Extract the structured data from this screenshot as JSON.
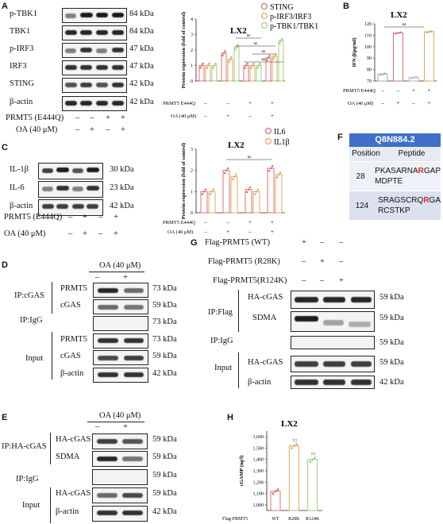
{
  "panels": {
    "A": {
      "letter": "A",
      "rows": [
        {
          "label": "p-TBK1",
          "kda": "84 kDa"
        },
        {
          "label": "TBK1",
          "kda": "84 kDa"
        },
        {
          "label": "p-IRF3",
          "kda": "47 kDa"
        },
        {
          "label": "IRF3",
          "kda": "47 kDa"
        },
        {
          "label": "STING",
          "kda": "42 kDa"
        },
        {
          "label": "β-actin",
          "kda": "42 kDa"
        }
      ],
      "cond1_label": "PRMT5 (E444Q)",
      "cond1_signs": [
        "–",
        "–",
        "+",
        "+"
      ],
      "cond2_label": "OA (40 μM)",
      "cond2_signs": [
        "–",
        "+",
        "–",
        "+"
      ],
      "chart_title": "LX2",
      "legend": [
        "STING",
        "p-IRF3/IRF3",
        "p-TBK1/TBK1"
      ],
      "ylabel": "Protein expression (fold of control)",
      "yticks": [
        "0",
        "1",
        "2",
        "3",
        "4"
      ],
      "x_cond1": "PRMT5  E444Q",
      "x_cond2": "OA (40 μM)",
      "x_signs1": [
        "–",
        "–",
        "+",
        "+"
      ],
      "x_signs2": [
        "–",
        "+",
        "–",
        "+"
      ],
      "ns": [
        "ns",
        "ns",
        "ns",
        "ns"
      ]
    },
    "B": {
      "letter": "B",
      "title": "LX2",
      "ylabel": "IFN-β(pg/ml)",
      "yticks": [
        "70",
        "80",
        "90",
        "100",
        "110",
        "120"
      ],
      "x_cond1": "PRMT5  E444Q",
      "x_cond2": "OA (40 μM)",
      "x_signs1": [
        "–",
        "–",
        "+",
        "+"
      ],
      "x_signs2": [
        "–",
        "+",
        "–",
        "+"
      ],
      "ns": "ns"
    },
    "C": {
      "letter": "C",
      "rows": [
        {
          "label": "IL-1β",
          "kda": "30 kDa"
        },
        {
          "label": "IL-6",
          "kda": "23 kDa"
        },
        {
          "label": "β-actin",
          "kda": "42 kDa"
        }
      ],
      "cond1_label": "PRMT5 (E444Q)",
      "cond1_signs": [
        "–",
        "+",
        "–",
        "+"
      ],
      "cond2_label": "OA (40 μM)",
      "cond2_signs": [
        "–",
        "+",
        "–",
        "+"
      ],
      "chart_title": "LX2",
      "legend": [
        "IL6",
        "IL1β"
      ],
      "ylabel": "Protein expression (fold of control)",
      "yticks": [
        "0",
        "1",
        "2",
        "3"
      ],
      "x_cond1": "PRMT5  E444Q",
      "x_cond2": "OA (40 μM)",
      "x_signs1": [
        "–",
        "–",
        "+",
        "+"
      ],
      "x_signs2": [
        "–",
        "+",
        "–",
        "+"
      ],
      "ns": "ns"
    },
    "D": {
      "letter": "D",
      "cond_label": "OA (40 μM)",
      "signs": [
        "–",
        "+"
      ],
      "group_ip": "IP:cGAS",
      "group_igg": "IP:IgG",
      "group_input": "Input",
      "rows": [
        {
          "label": "PRMT5",
          "kda": "73 kDa"
        },
        {
          "label": "cGAS",
          "kda": "59 kDa"
        },
        {
          "label": "",
          "kda": "73 kDa"
        },
        {
          "label": "PRMT5",
          "kda": "73 kDa"
        },
        {
          "label": "cGAS",
          "kda": "59 kDa"
        },
        {
          "label": "β-actin",
          "kda": "42 kDa"
        }
      ]
    },
    "E": {
      "letter": "E",
      "cond_label": "OA (40 μM)",
      "signs": [
        "–",
        "+"
      ],
      "group_ip": "IP:HA-cGAS",
      "group_igg": "IP:IgG",
      "group_input": "Input",
      "rows": [
        {
          "label": "HA-cGAS",
          "kda": "59 kDa"
        },
        {
          "label": "SDMA",
          "kda": "59 kDa"
        },
        {
          "label": "",
          "kda": "59 kDa"
        },
        {
          "label": "HA-cGAS",
          "kda": "59 kDa"
        },
        {
          "label": "β-actin",
          "kda": "42 kDa"
        }
      ]
    },
    "F": {
      "letter": "F",
      "header": "Q8N884.2",
      "col1": "Position",
      "col2": "Peptide",
      "rows": [
        {
          "pos": "28",
          "pre": "PKASARNA",
          "r": "R",
          "post": "GAP",
          "line2": "MDPTE"
        },
        {
          "pos": "124",
          "pre": "SRAGSCRQ",
          "r": "R",
          "post": "GA",
          "line2": "RCSTKP"
        }
      ],
      "accent": "#3f6fc8",
      "red": "#e0302a"
    },
    "G": {
      "letter": "G",
      "cond_rows": [
        {
          "label": "Flag-PRMT5  (WT)",
          "signs": [
            "+",
            "–",
            "–"
          ]
        },
        {
          "label": "Flag-PRMT5  (R28K)",
          "signs": [
            "–",
            "+",
            "–"
          ]
        },
        {
          "label": "Flag-PRMT5(R124K)",
          "signs": [
            "–",
            "–",
            "+"
          ]
        }
      ],
      "group_ip": "IP:Flag",
      "group_igg": "IP:IgG",
      "group_input": "Input",
      "rows": [
        {
          "label": "HA-cGAS",
          "kda": "59 kDa"
        },
        {
          "label": "SDMA",
          "kda": "59 kDa"
        },
        {
          "label": "",
          "kda": "59 kDa"
        },
        {
          "label": "HA-cGAS",
          "kda": "59 kDa"
        },
        {
          "label": "β-actin",
          "kda": "42 kDa"
        }
      ]
    },
    "H": {
      "letter": "H",
      "title": "LX2",
      "ylabel": "cGAMP (ng/l)",
      "yticks": [
        "1,000",
        "1,100",
        "1,200",
        "1,300",
        "1,400",
        "1,500",
        "1,600"
      ],
      "xlabel": "Flag-PRMT5",
      "categories": [
        "WT",
        "R28K",
        "R124K"
      ],
      "sig": [
        "##",
        "##"
      ]
    }
  },
  "chart_data": [
    {
      "type": "bar",
      "panel": "A",
      "title": "LX2",
      "ylabel": "Protein expression (fold of control)",
      "ylim": [
        0,
        4
      ],
      "categories": [
        "1",
        "2",
        "3",
        "4"
      ],
      "series": [
        {
          "name": "STING",
          "values": [
            1.0,
            1.8,
            1.0,
            1.5
          ],
          "color": "#e07070"
        },
        {
          "name": "p-IRF3/IRF3",
          "values": [
            1.0,
            1.4,
            1.0,
            1.6
          ],
          "color": "#e0a860"
        },
        {
          "name": "p-TBK1/TBK1",
          "values": [
            1.0,
            2.2,
            1.0,
            2.6
          ],
          "color": "#9ccf7a"
        }
      ]
    },
    {
      "type": "bar",
      "panel": "B",
      "title": "LX2",
      "ylabel": "IFN-β(pg/ml)",
      "ylim": [
        70,
        120
      ],
      "categories": [
        "1",
        "2",
        "3",
        "4"
      ],
      "series": [
        {
          "values": [
            76,
            112,
            73,
            113
          ],
          "colors": [
            "#9aa8d8",
            "#e07070",
            "#c8a8d8",
            "#e0a860"
          ]
        }
      ]
    },
    {
      "type": "bar",
      "panel": "C",
      "title": "LX2",
      "ylabel": "Protein expression (fold of control)",
      "ylim": [
        0,
        3
      ],
      "categories": [
        "1",
        "2",
        "3",
        "4"
      ],
      "series": [
        {
          "name": "IL6",
          "values": [
            1.0,
            2.0,
            1.1,
            2.1
          ],
          "color": "#e07070"
        },
        {
          "name": "IL1β",
          "values": [
            1.0,
            1.7,
            1.0,
            1.8
          ],
          "color": "#e0a860"
        }
      ]
    },
    {
      "type": "bar",
      "panel": "H",
      "title": "LX2",
      "ylabel": "cGAMP (ng/l)",
      "xlabel": "Flag-PRMT5",
      "ylim": [
        950,
        1650
      ],
      "categories": [
        "WT",
        "R28K",
        "R124K"
      ],
      "series": [
        {
          "values": [
            1120,
            1520,
            1400
          ],
          "colors": [
            "#e07070",
            "#e0a860",
            "#9ccf7a"
          ]
        }
      ]
    }
  ]
}
